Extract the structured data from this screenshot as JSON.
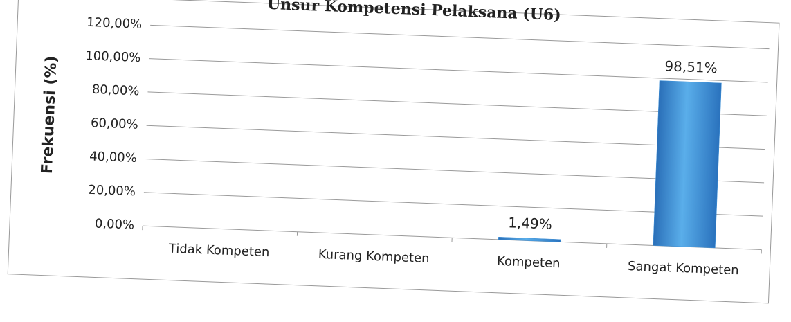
{
  "chart_data": {
    "type": "bar",
    "title": "Unsur Kompetensi Pelaksana (U6)",
    "y_label": "Frekuensi (%)",
    "categories": [
      "Tidak Kompeten",
      "Kurang Kompeten",
      "Kompeten",
      "Sangat Kompeten"
    ],
    "values": [
      0,
      0,
      1.49,
      98.51
    ],
    "value_labels": [
      null,
      null,
      "1,49%",
      "98,51%"
    ],
    "color": "#3a8fd8",
    "ylim": [
      0,
      120
    ],
    "yticks": [
      {
        "value": 0,
        "label": "0,00%"
      },
      {
        "value": 20,
        "label": "20,00%"
      },
      {
        "value": 40,
        "label": "40,00%"
      },
      {
        "value": 60,
        "label": "60,00%"
      },
      {
        "value": 80,
        "label": "80,00%"
      },
      {
        "value": 100,
        "label": "100,00%"
      },
      {
        "value": 120,
        "label": "120,00%"
      }
    ],
    "grid": true
  }
}
